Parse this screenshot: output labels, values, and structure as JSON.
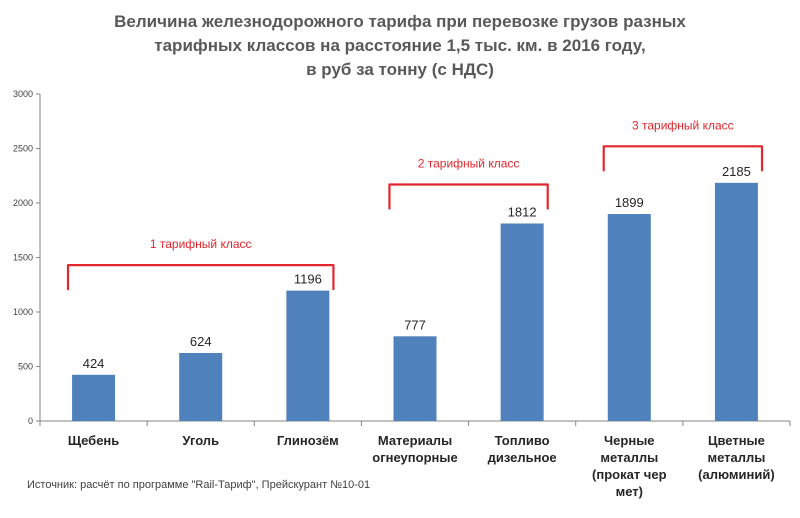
{
  "title_lines": [
    "Величина железнодорожного тарифа при перевозке грузов разных",
    "тарифных классов на расстояние 1,5 тыс. км. в 2016 году,",
    "в руб за тонну (с НДС)"
  ],
  "source": "Источник: расчёт по программе \"Rail-Тариф\", Прейскурант №10-01",
  "chart_data": {
    "type": "bar",
    "categories": [
      [
        "Щебень"
      ],
      [
        "Уголь"
      ],
      [
        "Глинозём"
      ],
      [
        "Материалы",
        "огнеупорные"
      ],
      [
        "Топливо",
        "дизельное"
      ],
      [
        "Черные",
        "металлы",
        "(прокат чер",
        "мет)"
      ],
      [
        "Цветные",
        "металлы",
        "(алюминий)"
      ]
    ],
    "values": [
      424,
      624,
      1196,
      777,
      1812,
      1899,
      2185
    ],
    "data_labels": [
      "424",
      "624",
      "1196",
      "777",
      "1812",
      "1899",
      "2185"
    ],
    "ylim": [
      0,
      3000
    ],
    "yticks": [
      0,
      500,
      1000,
      1500,
      2000,
      2500,
      3000
    ],
    "grid": false,
    "bar_color": "#4F81BD",
    "groups": [
      {
        "label": "1 тарифный класс",
        "from": 0,
        "to": 2,
        "value_level": 1430
      },
      {
        "label": "2 тарифный класс",
        "from": 3,
        "to": 4,
        "value_level": 2170
      },
      {
        "label": "3 тарифный класс",
        "from": 5,
        "to": 6,
        "value_level": 2520
      }
    ],
    "group_color": "#E3262C"
  }
}
